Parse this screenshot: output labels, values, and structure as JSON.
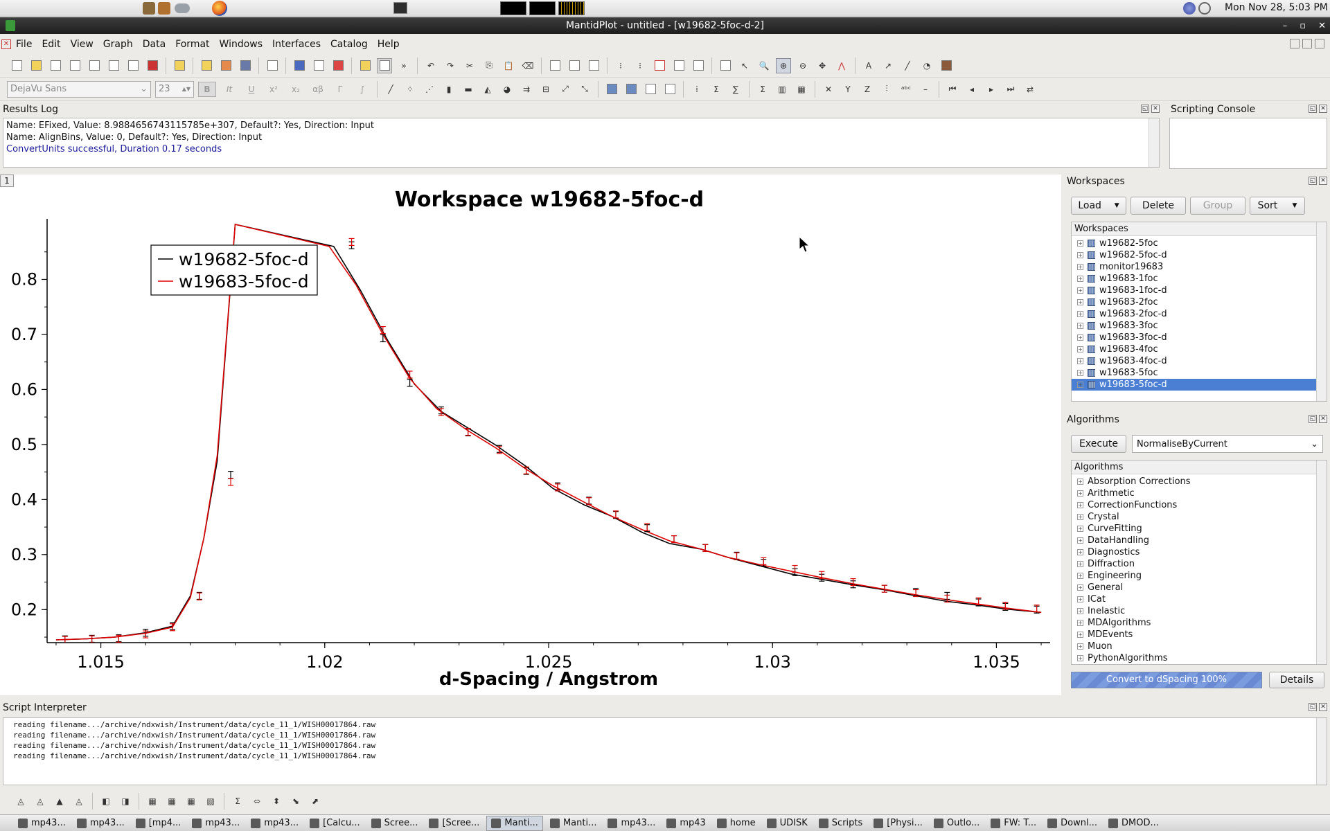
{
  "system": {
    "clock": "Mon Nov 28,  5:03 PM"
  },
  "window": {
    "title": "MantidPlot - untitled - [w19682-5foc-d-2]"
  },
  "menu": [
    "File",
    "Edit",
    "View",
    "Graph",
    "Data",
    "Format",
    "Windows",
    "Interfaces",
    "Catalog",
    "Help"
  ],
  "format_bar": {
    "font": "DejaVu Sans",
    "size": "23",
    "bold": "B",
    "italic": "It",
    "underline": "U",
    "sup": "x²",
    "sub": "x₂",
    "greek": "αβ",
    "gamma": "Γ",
    "integral": "∫"
  },
  "results_log": {
    "title": "Results Log",
    "lines": [
      "  Name: EFixed, Value: 8.9884656743115785e+307, Default?: Yes, Direction: Input",
      "  Name: AlignBins, Value: 0, Default?: Yes, Direction: Input",
      "ConvertUnits successful, Duration 0.17 seconds"
    ]
  },
  "scripting_console": {
    "title": "Scripting Console"
  },
  "graph_window": {
    "index": "1"
  },
  "chart_data": {
    "type": "line",
    "title": "Workspace w19682-5foc-d",
    "xlabel": "d-Spacing / Angstrom",
    "ylabel": "",
    "xlim": [
      1.0138,
      1.0362
    ],
    "ylim": [
      0.14,
      0.9
    ],
    "xticks": [
      "1.015",
      "1.02",
      "1.025",
      "1.03",
      "1.035"
    ],
    "yticks": [
      "0.2",
      "0.3",
      "0.4",
      "0.5",
      "0.6",
      "0.7",
      "0.8"
    ],
    "legend_position": "top-left",
    "series": [
      {
        "name": "w19682-5foc-d",
        "color": "#000000",
        "x": [
          1.014,
          1.0147,
          1.0153,
          1.016,
          1.0166,
          1.017,
          1.0173,
          1.0176,
          1.018,
          1.0202,
          1.0208,
          1.0214,
          1.022,
          1.0226,
          1.0232,
          1.0238,
          1.0245,
          1.0251,
          1.0258,
          1.0264,
          1.0271,
          1.0277,
          1.0284,
          1.029,
          1.0297,
          1.0304,
          1.0311,
          1.0318,
          1.0325,
          1.0332,
          1.0339,
          1.0346,
          1.0352,
          1.036
        ],
        "y": [
          0.145,
          0.147,
          0.15,
          0.158,
          0.17,
          0.225,
          0.33,
          0.47,
          0.9,
          0.86,
          0.78,
          0.69,
          0.61,
          0.56,
          0.53,
          0.5,
          0.46,
          0.42,
          0.39,
          0.37,
          0.34,
          0.32,
          0.31,
          0.295,
          0.28,
          0.265,
          0.255,
          0.245,
          0.236,
          0.225,
          0.215,
          0.208,
          0.201,
          0.195
        ]
      },
      {
        "name": "w19683-5foc-d",
        "color": "#e00000",
        "x": [
          1.014,
          1.0147,
          1.0153,
          1.016,
          1.0166,
          1.017,
          1.0173,
          1.0176,
          1.018,
          1.0201,
          1.0207,
          1.0213,
          1.0219,
          1.0225,
          1.0232,
          1.0238,
          1.0245,
          1.0251,
          1.0258,
          1.0264,
          1.0271,
          1.0277,
          1.0284,
          1.029,
          1.0297,
          1.0304,
          1.0311,
          1.0318,
          1.0325,
          1.0332,
          1.0339,
          1.0346,
          1.0352,
          1.036
        ],
        "y": [
          0.145,
          0.147,
          0.15,
          0.157,
          0.168,
          0.222,
          0.33,
          0.48,
          0.9,
          0.86,
          0.79,
          0.7,
          0.62,
          0.565,
          0.525,
          0.495,
          0.455,
          0.425,
          0.395,
          0.37,
          0.345,
          0.325,
          0.31,
          0.295,
          0.282,
          0.27,
          0.258,
          0.247,
          0.237,
          0.227,
          0.218,
          0.21,
          0.203,
          0.195
        ]
      }
    ],
    "markers": {
      "black": {
        "x": [
          1.0142,
          1.0148,
          1.0154,
          1.016,
          1.0166,
          1.0172,
          1.0179,
          1.0206,
          1.0213,
          1.0219,
          1.0226,
          1.0232,
          1.0239,
          1.0245,
          1.0252,
          1.0259,
          1.0265,
          1.0272,
          1.0278,
          1.0285,
          1.0292,
          1.0298,
          1.0305,
          1.0311,
          1.0318,
          1.0325,
          1.0332,
          1.0339,
          1.0346,
          1.0352,
          1.0359
        ],
        "y": [
          0.146,
          0.147,
          0.148,
          0.158,
          0.17,
          0.225,
          0.445,
          0.862,
          0.693,
          0.612,
          0.562,
          0.522,
          0.492,
          0.452,
          0.424,
          0.398,
          0.372,
          0.348,
          0.328,
          0.312,
          0.298,
          0.285,
          0.268,
          0.258,
          0.246,
          0.238,
          0.232,
          0.225,
          0.213,
          0.205,
          0.2
        ]
      },
      "red": {
        "x": [
          1.0142,
          1.0148,
          1.0154,
          1.016,
          1.0166,
          1.0172,
          1.0179,
          1.0206,
          1.0213,
          1.0219,
          1.0226,
          1.0232,
          1.0239,
          1.0245,
          1.0252,
          1.0259,
          1.0265,
          1.0272,
          1.0278,
          1.0285,
          1.0292,
          1.0298,
          1.0305,
          1.0311,
          1.0318,
          1.0325,
          1.0332,
          1.0339,
          1.0346,
          1.0352,
          1.0359
        ],
        "y": [
          0.145,
          0.146,
          0.147,
          0.155,
          0.168,
          0.224,
          0.432,
          0.868,
          0.708,
          0.627,
          0.559,
          0.523,
          0.49,
          0.453,
          0.422,
          0.397,
          0.373,
          0.35,
          0.328,
          0.312,
          0.297,
          0.288,
          0.274,
          0.263,
          0.25,
          0.238,
          0.23,
          0.22,
          0.215,
          0.207,
          0.202
        ]
      }
    }
  },
  "workspaces": {
    "title": "Workspaces",
    "load": "Load",
    "delete": "Delete",
    "group": "Group",
    "sort": "Sort",
    "tree_header": "Workspaces",
    "items": [
      "w19682-5foc",
      "w19682-5foc-d",
      "monitor19683",
      "w19683-1foc",
      "w19683-1foc-d",
      "w19683-2foc",
      "w19683-2foc-d",
      "w19683-3foc",
      "w19683-3foc-d",
      "w19683-4foc",
      "w19683-4foc-d",
      "w19683-5foc",
      "w19683-5foc-d"
    ],
    "selected": 12
  },
  "algorithms": {
    "title": "Algorithms",
    "execute": "Execute",
    "current": "NormaliseByCurrent",
    "tree_header": "Algorithms",
    "items": [
      "Absorption Corrections",
      "Arithmetic",
      "CorrectionFunctions",
      "Crystal",
      "CurveFitting",
      "DataHandling",
      "Diagnostics",
      "Diffraction",
      "Engineering",
      "General",
      "ICat",
      "Inelastic",
      "MDAlgorithms",
      "MDEvents",
      "Muon",
      "PythonAlgorithms"
    ],
    "progress": "Convert to dSpacing 100%",
    "progress_value": 1.0,
    "details": "Details"
  },
  "script_interpreter": {
    "title": "Script Interpreter",
    "lines": [
      "reading filename.../archive/ndxwish/Instrument/data/cycle_11_1/WISH00017864.raw",
      "reading filename.../archive/ndxwish/Instrument/data/cycle_11_1/WISH00017864.raw",
      "reading filename.../archive/ndxwish/Instrument/data/cycle_11_1/WISH00017864.raw",
      "reading filename.../archive/ndxwish/Instrument/data/cycle_11_1/WISH00017864.raw"
    ]
  },
  "taskbar": [
    "mp43...",
    "mp43...",
    "[mp4...",
    "mp43...",
    "mp43...",
    "[Calcu...",
    "Scree...",
    "[Scree...",
    "Manti...",
    "Manti...",
    "mp43...",
    "mp43",
    "home",
    "UDISK",
    "Scripts",
    "[Physi...",
    "Outlo...",
    "FW: T...",
    "Downl...",
    "DMOD..."
  ],
  "taskbar_active": 8
}
